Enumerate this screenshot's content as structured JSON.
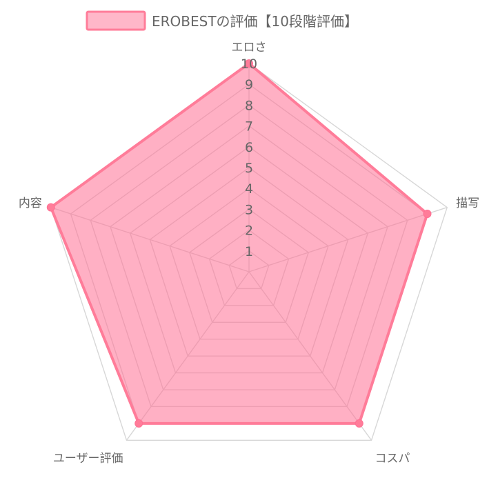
{
  "chart_data": {
    "type": "radar",
    "legend": {
      "label": "EROBESTの評価【10段階評価】",
      "placement": "top-center"
    },
    "categories": [
      "エロさ",
      "描写",
      "コスパ",
      "ユーザー評価",
      "内容"
    ],
    "series": [
      {
        "name": "EROBESTの評価【10段階評価】",
        "values": [
          10,
          9,
          9,
          9,
          10
        ]
      }
    ],
    "scale": {
      "min": 0,
      "max": 10,
      "step": 1,
      "ticks": [
        "1",
        "2",
        "3",
        "4",
        "5",
        "6",
        "7",
        "8",
        "9",
        "10"
      ]
    },
    "colors": {
      "fill": "#ff6f93",
      "line": "#ff7c99",
      "point": "#ff7c99",
      "grid": "#d7d7d7",
      "text": "#666666"
    }
  }
}
